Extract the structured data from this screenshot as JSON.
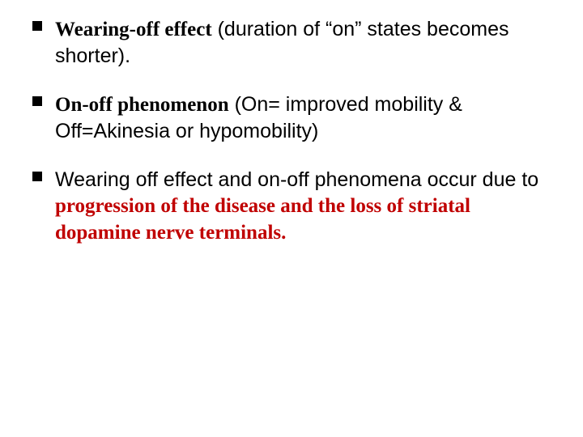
{
  "slide": {
    "background_color": "#ffffff",
    "text_color": "#000000",
    "accent_color": "#c00000",
    "bullet_color": "#000000",
    "body_fontsize": 25,
    "serif_family": "Times New Roman",
    "sans_family": "Arial",
    "bullets": [
      {
        "parts": [
          {
            "text": "Wearing-off effect",
            "style": "serif-bold"
          },
          {
            "text": " (duration of “on” states becomes shorter).",
            "style": "plain"
          }
        ]
      },
      {
        "parts": [
          {
            "text": "On-off phenomenon",
            "style": "serif-bold"
          },
          {
            "text": " (On= improved mobility & Off=Akinesia or hypomobility)",
            "style": "plain"
          }
        ]
      },
      {
        "parts": [
          {
            "text": "Wearing off effect and on-off phenomena occur due to ",
            "style": "plain"
          },
          {
            "text": "progression of the disease and the loss of striatal dopamine nerve terminals.",
            "style": "serif-bold-red"
          }
        ]
      }
    ]
  }
}
